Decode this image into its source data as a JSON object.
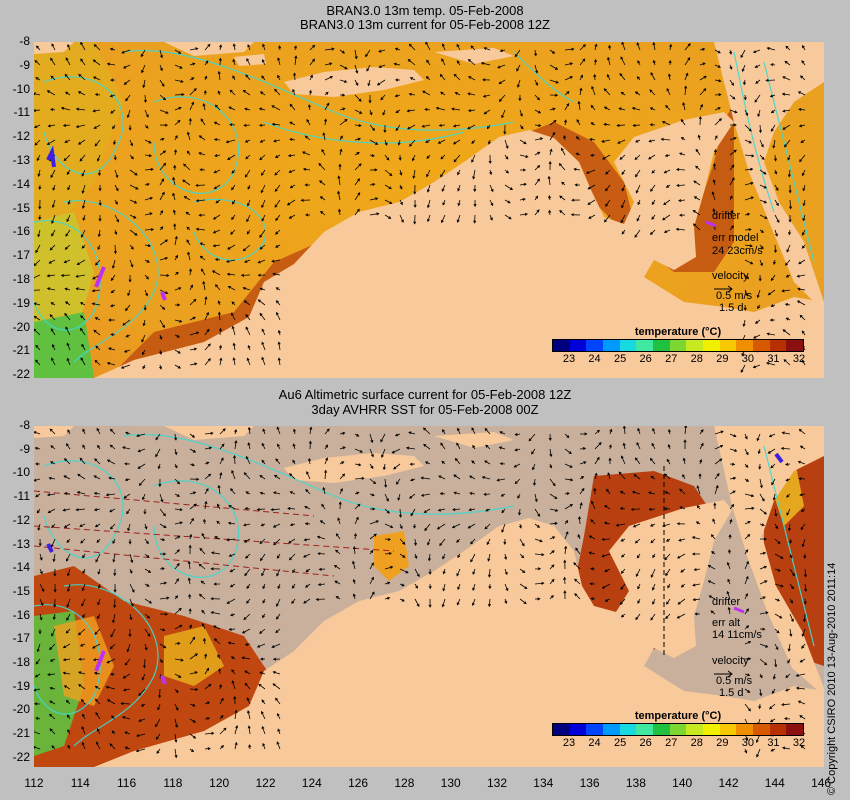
{
  "top_panel": {
    "title_line1": "BRAN3.0 13m temp. 05-Feb-2008",
    "title_line2": "BRAN3.0 13m current for 05-Feb-2008 12Z",
    "drifter_label": "drifter",
    "err_label": "err model",
    "err_value": "24 23cm/s",
    "velocity_label": "velocity",
    "velocity_scale": "0.5 m/s",
    "velocity_time": "1.5 d"
  },
  "bottom_panel": {
    "title_line1": "Au6 Altimetric surface current for 05-Feb-2008 12Z",
    "title_line2": "3day AVHRR SST for 05-Feb-2008 00Z",
    "drifter_label": "drifter",
    "err_label": "err alt",
    "err_value": "14 11cm/s",
    "velocity_label": "velocity",
    "velocity_scale": "0.5 m/s",
    "velocity_time": "1.5 d"
  },
  "legend": {
    "title": "temperature (°C)",
    "ticks": [
      "23",
      "24",
      "25",
      "26",
      "27",
      "28",
      "29",
      "30",
      "31",
      "32"
    ],
    "colors": [
      "#00007f",
      "#0000d8",
      "#0044ff",
      "#0099ff",
      "#18d8e0",
      "#40e8a0",
      "#20c040",
      "#7cd830",
      "#c8e820",
      "#f0f000",
      "#f8c800",
      "#f09000",
      "#d85a00",
      "#b83000",
      "#8c1010"
    ]
  },
  "y_axis_ticks": [
    "-8",
    "-9",
    "-10",
    "-11",
    "-12",
    "-13",
    "-14",
    "-15",
    "-16",
    "-17",
    "-18",
    "-19",
    "-20",
    "-21",
    "-22"
  ],
  "x_axis_ticks": [
    "112",
    "114",
    "116",
    "118",
    "120",
    "122",
    "124",
    "126",
    "128",
    "130",
    "132",
    "134",
    "136",
    "138",
    "140",
    "142",
    "144",
    "146"
  ],
  "copyright": "© Copyright CSIRO 2010  13-Aug-2010 2011:14",
  "colors": {
    "land": "#f8c99b",
    "no_data_ocean": "#c8b09c",
    "warm_sea": "#f0a020",
    "hot_sea": "#c04810",
    "contour": "#40d8d0",
    "drifter": "#c030f0",
    "background": "#c0c0c0"
  }
}
